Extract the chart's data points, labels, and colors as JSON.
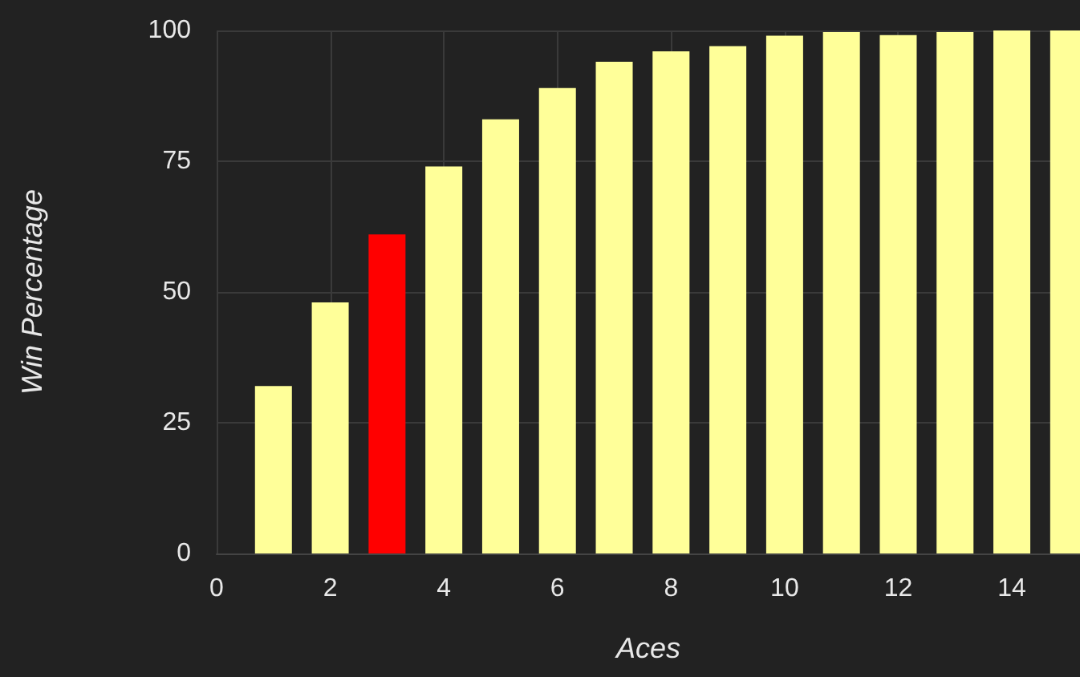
{
  "chart_data": {
    "type": "bar",
    "xlabel": "Aces",
    "ylabel": "Win Percentage",
    "x": [
      1,
      2,
      3,
      4,
      5,
      6,
      7,
      8,
      9,
      10,
      11,
      12,
      13,
      14,
      15
    ],
    "values": [
      32,
      48,
      61,
      74,
      83,
      89,
      94,
      96,
      97,
      99,
      99.7,
      99.1,
      99.7,
      100,
      100
    ],
    "colors": [
      "#ffff99",
      "#ffff99",
      "#ff0000",
      "#ffff99",
      "#ffff99",
      "#ffff99",
      "#ffff99",
      "#ffff99",
      "#ffff99",
      "#ffff99",
      "#ffff99",
      "#ffff99",
      "#ffff99",
      "#ffff99",
      "#ffff99"
    ],
    "xlim": [
      0,
      15.2
    ],
    "xticks": [
      0,
      2,
      4,
      6,
      8,
      10,
      12,
      14
    ],
    "ylim": [
      0,
      100
    ],
    "yticks": [
      0,
      25,
      50,
      75,
      100
    ],
    "grid": true
  }
}
